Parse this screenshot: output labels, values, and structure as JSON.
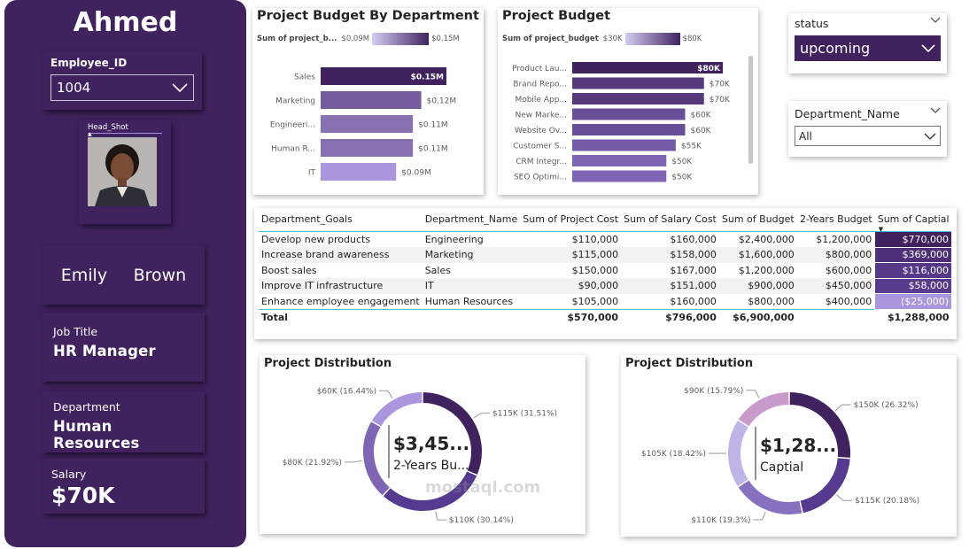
{
  "employee": {
    "name": "Ahmed",
    "id_label": "Employee_ID",
    "id_value": "1004",
    "headshot_label": "Head_Shot",
    "first_name": "Emily",
    "last_name": "Brown",
    "job_title_label": "Job Title",
    "job_title": "HR Manager",
    "department_label": "Department",
    "department": "Human Resources",
    "salary_label": "Salary",
    "salary": "$70K"
  },
  "slicers": {
    "status_label": "status",
    "status_value": "upcoming",
    "department_label": "Department_Name",
    "department_value": "All"
  },
  "colors": {
    "primary": "#40225f",
    "mid": "#7e66b5",
    "light": "#a996dd"
  },
  "budget_by_department": {
    "title": "Project Budget By Department",
    "legend_name": "Sum of project_b...",
    "legend_min": "$0.09M",
    "legend_max": "$0.15M",
    "chart_data": {
      "type": "bar",
      "orientation": "horizontal",
      "categories": [
        "Sales",
        "Marketing",
        "Engineeri...",
        "Human R...",
        "IT"
      ],
      "values": [
        0.15,
        0.12,
        0.11,
        0.11,
        0.09
      ],
      "value_labels": [
        "$0.15M",
        "$0.12M",
        "$0.11M",
        "$0.11M",
        "$0.09M"
      ],
      "xlim": [
        0,
        0.15
      ]
    }
  },
  "project_budget": {
    "title": "Project Budget",
    "legend_name": "Sum of project_budget",
    "legend_min": "$30K",
    "legend_max": "$80K",
    "chart_data": {
      "type": "bar",
      "orientation": "horizontal",
      "categories": [
        "Product Lau...",
        "Brand Repo...",
        "Mobile App...",
        "New Marke...",
        "Website Ov...",
        "Customer S...",
        "CRM Integr...",
        "SEO Optimi..."
      ],
      "values": [
        80,
        70,
        70,
        60,
        60,
        55,
        50,
        50
      ],
      "value_labels": [
        "$80K",
        "$70K",
        "$70K",
        "$60K",
        "$60K",
        "$55K",
        "$50K",
        "$50K"
      ],
      "xlim": [
        0,
        80
      ]
    }
  },
  "table": {
    "columns": [
      "Department_Goals",
      "Department_Name",
      "Sum of Project Cost",
      "Sum of Salary Cost",
      "Sum of Budget",
      "2-Years Budget",
      "Sum of Captial"
    ],
    "rows": [
      [
        "Develop new products",
        "Engineering",
        "$110,000",
        "$160,000",
        "$2,400,000",
        "$1,200,000",
        "$770,000"
      ],
      [
        "Increase brand awareness",
        "Marketing",
        "$115,000",
        "$158,000",
        "$1,600,000",
        "$800,000",
        "$369,000"
      ],
      [
        "Boost sales",
        "Sales",
        "$150,000",
        "$167,000",
        "$1,200,000",
        "$600,000",
        "$116,000"
      ],
      [
        "Improve IT infrastructure",
        "IT",
        "$90,000",
        "$151,000",
        "$900,000",
        "$450,000",
        "$58,000"
      ],
      [
        "Enhance employee engagement",
        "Human Resources",
        "$105,000",
        "$160,000",
        "$800,000",
        "$400,000",
        "($25,000)"
      ]
    ],
    "total": [
      "Total",
      "",
      "$570,000",
      "$796,000",
      "$6,900,000",
      "",
      "$1,288,000"
    ]
  },
  "donut_left": {
    "title": "Project Distribution",
    "center_value": "$3,45...",
    "center_label": "2-Years Bu...",
    "chart_data": {
      "type": "pie",
      "values": [
        115,
        110,
        80,
        60
      ],
      "labels": [
        "$115K (31.51%)",
        "$110K (30.14%)",
        "$80K (21.92%)",
        "$60K (16.44%)"
      ],
      "colors": [
        "#40225f",
        "#553a8f",
        "#7e66b5",
        "#a996dd"
      ]
    }
  },
  "donut_right": {
    "title": "Project Distribution",
    "center_value": "$1,28...",
    "center_label": "Captial",
    "chart_data": {
      "type": "pie",
      "values": [
        150,
        115,
        110,
        105,
        90
      ],
      "labels": [
        "$150K (26.32%)",
        "$115K (20.18%)",
        "$110K (19.3%)",
        "$105K (18.42%)",
        "$90K (15.79%)"
      ],
      "colors": [
        "#40225f",
        "#553a8f",
        "#8670c0",
        "#c0b3e6",
        "#c89bcb"
      ]
    }
  },
  "watermark": "mostaql.com"
}
